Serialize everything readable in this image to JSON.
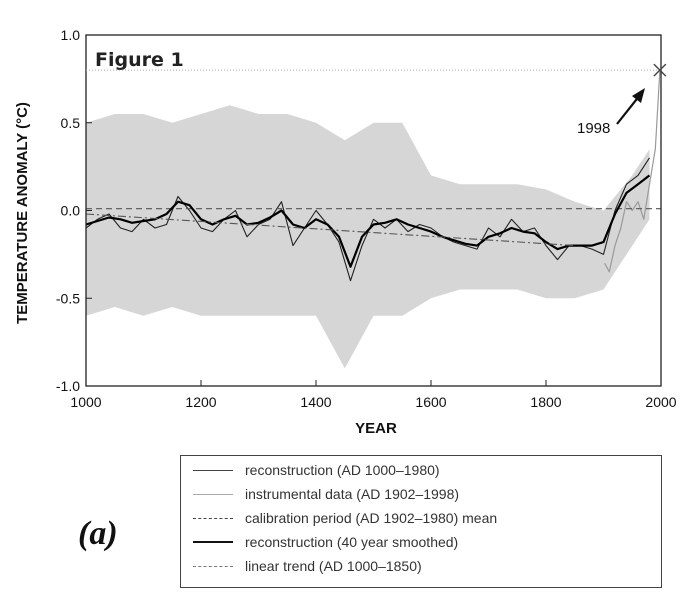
{
  "chart_data": {
    "type": "line",
    "figure_label": "Figure 1",
    "xlabel": "YEAR",
    "ylabel": "TEMPERATURE ANOMALY (°C)",
    "xlim": [
      1000,
      2000
    ],
    "ylim": [
      -1.0,
      1.0
    ],
    "x_ticks": [
      "1000",
      "1200",
      "1400",
      "1600",
      "1800",
      "2000"
    ],
    "y_ticks": [
      "1.0",
      "0.5",
      "0.0",
      "-0.5",
      "-1.0"
    ],
    "annotation": {
      "text": "1998",
      "x": 1998,
      "y": 0.8
    },
    "panel_label": "(a)",
    "colors": {
      "reconstruction": "#222222",
      "uncertainty": "#c8c8c8",
      "smoothed": "#000000",
      "reference": "#555555"
    },
    "series": [
      {
        "name": "reconstruction (AD 1000–1980)",
        "style": "thin-solid",
        "x": [
          1000,
          1020,
          1040,
          1060,
          1080,
          1100,
          1120,
          1140,
          1160,
          1180,
          1200,
          1220,
          1240,
          1260,
          1280,
          1300,
          1320,
          1340,
          1360,
          1380,
          1400,
          1420,
          1440,
          1460,
          1480,
          1500,
          1520,
          1540,
          1560,
          1580,
          1600,
          1620,
          1640,
          1660,
          1680,
          1700,
          1720,
          1740,
          1760,
          1780,
          1800,
          1820,
          1840,
          1860,
          1880,
          1900,
          1920,
          1940,
          1960,
          1980
        ],
        "y": [
          -0.1,
          -0.05,
          -0.02,
          -0.1,
          -0.12,
          -0.05,
          -0.1,
          -0.08,
          0.08,
          0.0,
          -0.1,
          -0.12,
          -0.05,
          0.0,
          -0.15,
          -0.08,
          -0.05,
          0.05,
          -0.2,
          -0.1,
          0.0,
          -0.08,
          -0.18,
          -0.4,
          -0.2,
          -0.05,
          -0.1,
          -0.05,
          -0.12,
          -0.08,
          -0.1,
          -0.15,
          -0.18,
          -0.2,
          -0.22,
          -0.1,
          -0.15,
          -0.05,
          -0.12,
          -0.1,
          -0.2,
          -0.28,
          -0.2,
          -0.2,
          -0.22,
          -0.25,
          0.0,
          0.15,
          0.2,
          0.3
        ]
      },
      {
        "name": "instrumental data (AD 1902–1998)",
        "style": "light-solid",
        "x": [
          1902,
          1910,
          1920,
          1930,
          1940,
          1950,
          1960,
          1970,
          1980,
          1990,
          1998
        ],
        "y": [
          -0.3,
          -0.35,
          -0.2,
          -0.1,
          0.05,
          0.0,
          0.05,
          -0.05,
          0.15,
          0.35,
          0.8
        ]
      },
      {
        "name": "calibration period (AD 1902–1980) mean",
        "style": "dashed",
        "x": [
          1000,
          2000
        ],
        "y": [
          0.01,
          0.01
        ]
      },
      {
        "name": "reconstruction (40 year smoothed)",
        "style": "thick-solid",
        "x": [
          1000,
          1020,
          1040,
          1060,
          1080,
          1100,
          1120,
          1140,
          1160,
          1180,
          1200,
          1220,
          1240,
          1260,
          1280,
          1300,
          1320,
          1340,
          1360,
          1380,
          1400,
          1420,
          1440,
          1460,
          1480,
          1500,
          1520,
          1540,
          1560,
          1580,
          1600,
          1620,
          1640,
          1660,
          1680,
          1700,
          1720,
          1740,
          1760,
          1780,
          1800,
          1820,
          1840,
          1860,
          1880,
          1900,
          1920,
          1940,
          1960,
          1980
        ],
        "y": [
          -0.08,
          -0.06,
          -0.04,
          -0.05,
          -0.07,
          -0.06,
          -0.05,
          -0.02,
          0.05,
          0.03,
          -0.05,
          -0.08,
          -0.05,
          -0.03,
          -0.08,
          -0.07,
          -0.04,
          0.0,
          -0.08,
          -0.1,
          -0.05,
          -0.08,
          -0.15,
          -0.32,
          -0.15,
          -0.08,
          -0.07,
          -0.05,
          -0.08,
          -0.1,
          -0.12,
          -0.15,
          -0.17,
          -0.19,
          -0.2,
          -0.15,
          -0.13,
          -0.1,
          -0.12,
          -0.13,
          -0.18,
          -0.22,
          -0.2,
          -0.2,
          -0.2,
          -0.18,
          -0.02,
          0.1,
          0.15,
          0.2
        ]
      },
      {
        "name": "linear trend (AD 1000–1850)",
        "style": "dash-dot",
        "x": [
          1000,
          1850
        ],
        "y": [
          -0.02,
          -0.2
        ]
      }
    ],
    "uncertainty_band": {
      "x": [
        1000,
        1050,
        1100,
        1150,
        1200,
        1250,
        1300,
        1350,
        1400,
        1450,
        1500,
        1550,
        1600,
        1650,
        1700,
        1750,
        1800,
        1850,
        1900,
        1950,
        1980
      ],
      "upper": [
        0.5,
        0.55,
        0.55,
        0.5,
        0.55,
        0.6,
        0.55,
        0.55,
        0.5,
        0.4,
        0.5,
        0.5,
        0.2,
        0.15,
        0.15,
        0.15,
        0.12,
        0.05,
        0.0,
        0.2,
        0.35
      ],
      "lower": [
        -0.6,
        -0.55,
        -0.6,
        -0.55,
        -0.6,
        -0.6,
        -0.6,
        -0.6,
        -0.6,
        -0.9,
        -0.6,
        -0.6,
        -0.5,
        -0.45,
        -0.45,
        -0.45,
        -0.5,
        -0.5,
        -0.45,
        -0.2,
        -0.05
      ]
    }
  }
}
